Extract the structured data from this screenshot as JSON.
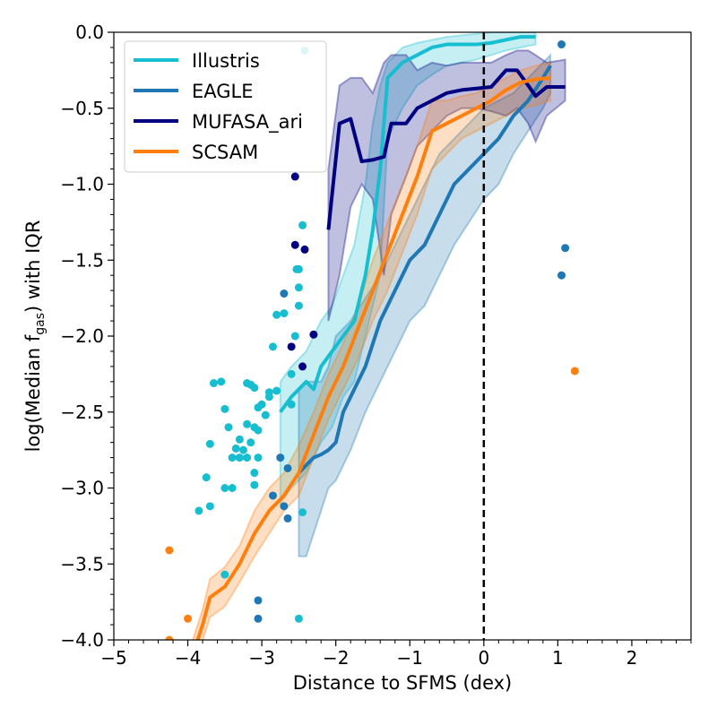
{
  "chart_data": {
    "type": "line",
    "xlabel": "Distance to SFMS (dex)",
    "ylabel": {
      "prefix": "log(Median f",
      "sub": "gas",
      "suffix": ") with IQR"
    },
    "xlim": [
      -5,
      2.8
    ],
    "ylim": [
      -4.0,
      0.0
    ],
    "xticks": [
      -5,
      -4,
      -3,
      -2,
      -1,
      0,
      1,
      2
    ],
    "xtick_labels": [
      "−5",
      "−4",
      "−3",
      "−2",
      "−1",
      "0",
      "1",
      "2"
    ],
    "yticks": [
      0.0,
      -0.5,
      -1.0,
      -1.5,
      -2.0,
      -2.5,
      -3.0,
      -3.5,
      -4.0
    ],
    "ytick_labels": [
      "0.0",
      "−0.5",
      "−1.0",
      "−1.5",
      "−2.0",
      "−2.5",
      "−3.0",
      "−3.5",
      "−4.0"
    ],
    "vline": {
      "x": 0,
      "style": "dashed",
      "color": "#000000"
    },
    "legend_position": "top-left",
    "series": [
      {
        "name": "Illustris",
        "color": "#17becf",
        "x": [
          -2.75,
          -2.6,
          -2.4,
          -2.3,
          -2.2,
          -2.05,
          -1.9,
          -1.75,
          -1.6,
          -1.5,
          -1.4,
          -1.3,
          -1.1,
          -0.9,
          -0.7,
          -0.5,
          -0.3,
          -0.1,
          0.1,
          0.3,
          0.5,
          0.7
        ],
        "y": [
          -2.5,
          -2.4,
          -2.3,
          -2.35,
          -2.2,
          -2.1,
          -2.0,
          -1.9,
          -1.6,
          -1.3,
          -0.9,
          -0.3,
          -0.2,
          -0.15,
          -0.1,
          -0.08,
          -0.08,
          -0.08,
          -0.07,
          -0.05,
          -0.03,
          -0.03
        ],
        "q1": [
          -3.1,
          -3.0,
          -2.9,
          -2.8,
          -2.7,
          -2.6,
          -2.4,
          -2.3,
          -2.0,
          -1.8,
          -1.6,
          -0.7,
          -0.5,
          -0.35,
          -0.28,
          -0.22,
          -0.2,
          -0.18,
          -0.15,
          -0.12,
          -0.1,
          -0.08
        ],
        "q3": [
          -2.3,
          -2.2,
          -2.1,
          -2.0,
          -1.9,
          -1.8,
          -1.6,
          -1.4,
          -1.0,
          -0.6,
          -0.35,
          -0.2,
          -0.1,
          -0.07,
          -0.05,
          -0.03,
          -0.02,
          -0.01,
          0.0,
          0.0,
          0.0,
          0.0
        ]
      },
      {
        "name": "EAGLE",
        "color": "#1f77b4",
        "x": [
          -2.5,
          -2.4,
          -2.3,
          -2.2,
          -2.1,
          -2.0,
          -1.9,
          -1.8,
          -1.6,
          -1.4,
          -1.2,
          -1.0,
          -0.8,
          -0.6,
          -0.4,
          -0.2,
          0.0,
          0.2,
          0.4,
          0.6,
          0.8,
          0.9
        ],
        "y": [
          -2.9,
          -2.85,
          -2.8,
          -2.78,
          -2.75,
          -2.7,
          -2.5,
          -2.4,
          -2.2,
          -1.9,
          -1.7,
          -1.5,
          -1.4,
          -1.2,
          -1.0,
          -0.9,
          -0.8,
          -0.7,
          -0.55,
          -0.45,
          -0.3,
          -0.22
        ],
        "q1": [
          -3.45,
          -3.45,
          -3.3,
          -3.15,
          -3.0,
          -2.95,
          -2.85,
          -2.75,
          -2.5,
          -2.3,
          -2.1,
          -1.9,
          -1.8,
          -1.6,
          -1.4,
          -1.25,
          -1.1,
          -1.0,
          -0.8,
          -0.65,
          -0.5,
          -0.4
        ],
        "q3": [
          -2.35,
          -2.3,
          -2.3,
          -2.3,
          -2.2,
          -2.0,
          -1.95,
          -1.9,
          -1.75,
          -1.6,
          -1.4,
          -1.2,
          -1.0,
          -0.8,
          -0.7,
          -0.6,
          -0.5,
          -0.45,
          -0.4,
          -0.3,
          -0.2,
          -0.15
        ]
      },
      {
        "name": "MUFASA_ari",
        "color": "#000080",
        "x": [
          -2.1,
          -1.95,
          -1.8,
          -1.65,
          -1.5,
          -1.35,
          -1.25,
          -1.05,
          -0.9,
          -0.7,
          -0.5,
          -0.3,
          -0.1,
          0.1,
          0.3,
          0.45,
          0.6,
          0.7,
          0.85,
          1.1
        ],
        "y": [
          -1.3,
          -0.6,
          -0.57,
          -0.85,
          -0.84,
          -0.82,
          -0.6,
          -0.6,
          -0.5,
          -0.45,
          -0.4,
          -0.38,
          -0.37,
          -0.36,
          -0.25,
          -0.25,
          -0.35,
          -0.42,
          -0.36,
          -0.36
        ],
        "q1": [
          -1.9,
          -1.6,
          -1.15,
          -1.0,
          -1.1,
          -1.6,
          -1.2,
          -0.95,
          -0.75,
          -0.65,
          -0.55,
          -0.5,
          -0.5,
          -0.52,
          -0.55,
          -0.5,
          -0.6,
          -0.72,
          -0.55,
          -0.45
        ],
        "q3": [
          -0.9,
          -0.35,
          -0.3,
          -0.3,
          -0.4,
          -0.2,
          -0.15,
          -0.15,
          -0.25,
          -0.2,
          -0.22,
          -0.2,
          -0.2,
          -0.2,
          -0.15,
          -0.12,
          -0.12,
          -0.15,
          -0.2,
          -0.18
        ]
      },
      {
        "name": "SCSAM",
        "color": "#ff7f0e",
        "x": [
          -4.0,
          -3.9,
          -3.8,
          -3.7,
          -3.5,
          -3.3,
          -3.1,
          -2.9,
          -2.7,
          -2.5,
          -2.3,
          -2.1,
          -1.9,
          -1.7,
          -1.5,
          -1.3,
          -1.1,
          -0.9,
          -0.7,
          -0.5,
          -0.3,
          -0.1,
          0.1,
          0.3,
          0.5,
          0.7,
          0.9
        ],
        "y": [
          -4.2,
          -4.05,
          -3.9,
          -3.72,
          -3.65,
          -3.5,
          -3.3,
          -3.15,
          -3.05,
          -2.9,
          -2.65,
          -2.4,
          -2.2,
          -1.95,
          -1.7,
          -1.45,
          -1.2,
          -0.95,
          -0.65,
          -0.6,
          -0.55,
          -0.5,
          -0.45,
          -0.38,
          -0.33,
          -0.31,
          -0.3
        ],
        "q1": [
          -4.3,
          -4.15,
          -4.0,
          -3.85,
          -3.78,
          -3.62,
          -3.45,
          -3.3,
          -3.15,
          -3.05,
          -2.8,
          -2.55,
          -2.35,
          -2.15,
          -1.9,
          -1.7,
          -1.45,
          -1.2,
          -0.9,
          -0.8,
          -0.7,
          -0.65,
          -0.6,
          -0.55,
          -0.5,
          -0.48,
          -0.45
        ],
        "q3": [
          -4.1,
          -3.95,
          -3.8,
          -3.6,
          -3.52,
          -3.38,
          -3.15,
          -3.0,
          -2.9,
          -2.72,
          -2.5,
          -2.25,
          -2.05,
          -1.8,
          -1.5,
          -1.25,
          -1.0,
          -0.75,
          -0.45,
          -0.45,
          -0.42,
          -0.4,
          -0.35,
          -0.3,
          -0.25,
          -0.22,
          -0.2
        ]
      }
    ],
    "scatter": [
      {
        "name": "Illustris",
        "color": "#17becf",
        "points": [
          [
            -2.42,
            -0.12
          ],
          [
            -2.45,
            -1.27
          ],
          [
            -2.5,
            -1.56
          ],
          [
            -2.53,
            -1.56
          ],
          [
            -2.5,
            -1.68
          ],
          [
            -2.5,
            -1.8
          ],
          [
            -2.55,
            -2.0
          ],
          [
            -2.6,
            -2.25
          ],
          [
            -2.6,
            -2.45
          ],
          [
            -2.7,
            -1.85
          ],
          [
            -2.8,
            -1.86
          ],
          [
            -2.85,
            -2.07
          ],
          [
            -2.8,
            -2.36
          ],
          [
            -2.9,
            -2.37
          ],
          [
            -2.9,
            -2.4
          ],
          [
            -2.95,
            -2.52
          ],
          [
            -3.0,
            -2.45
          ],
          [
            -3.05,
            -2.47
          ],
          [
            -3.05,
            -2.62
          ],
          [
            -3.1,
            -2.34
          ],
          [
            -3.15,
            -2.32
          ],
          [
            -3.2,
            -2.31
          ],
          [
            -3.2,
            -2.58
          ],
          [
            -3.3,
            -2.68
          ],
          [
            -3.25,
            -2.75
          ],
          [
            -3.35,
            -2.74
          ],
          [
            -3.1,
            -2.6
          ],
          [
            -3.15,
            -2.7
          ],
          [
            -3.05,
            -2.8
          ],
          [
            -3.1,
            -2.9
          ],
          [
            -3.2,
            -2.8
          ],
          [
            -3.3,
            -2.8
          ],
          [
            -3.4,
            -2.8
          ],
          [
            -3.45,
            -2.6
          ],
          [
            -3.5,
            -2.48
          ],
          [
            -3.55,
            -2.3
          ],
          [
            -3.65,
            -2.31
          ],
          [
            -3.7,
            -2.71
          ],
          [
            -3.75,
            -2.93
          ],
          [
            -3.5,
            -3.0
          ],
          [
            -3.4,
            -3.0
          ],
          [
            -3.1,
            -2.98
          ],
          [
            -3.7,
            -3.12
          ],
          [
            -3.85,
            -3.15
          ],
          [
            -2.45,
            -3.16
          ],
          [
            -2.5,
            -3.86
          ],
          [
            -3.5,
            -3.57
          ]
        ]
      },
      {
        "name": "EAGLE",
        "color": "#1f77b4",
        "points": [
          [
            1.05,
            -0.08
          ],
          [
            1.1,
            -1.42
          ],
          [
            1.05,
            -1.6
          ],
          [
            -2.7,
            -1.72
          ],
          [
            -2.75,
            -2.8
          ],
          [
            -2.65,
            -2.87
          ],
          [
            -2.7,
            -3.12
          ],
          [
            -2.65,
            -3.2
          ],
          [
            -2.85,
            -3.05
          ],
          [
            -3.05,
            -3.74
          ],
          [
            -3.05,
            -3.86
          ]
        ]
      },
      {
        "name": "MUFASA_ari",
        "color": "#000080",
        "points": [
          [
            -2.55,
            -0.95
          ],
          [
            -2.55,
            -1.4
          ],
          [
            -2.42,
            -1.43
          ],
          [
            -2.3,
            -1.99
          ],
          [
            -2.6,
            -2.07
          ],
          [
            -2.45,
            -2.2
          ]
        ]
      },
      {
        "name": "SCSAM",
        "color": "#ff7f0e",
        "points": [
          [
            1.23,
            -2.23
          ],
          [
            -4.25,
            -3.41
          ],
          [
            -4.0,
            -3.86
          ],
          [
            -4.25,
            -4.0
          ]
        ]
      }
    ]
  }
}
